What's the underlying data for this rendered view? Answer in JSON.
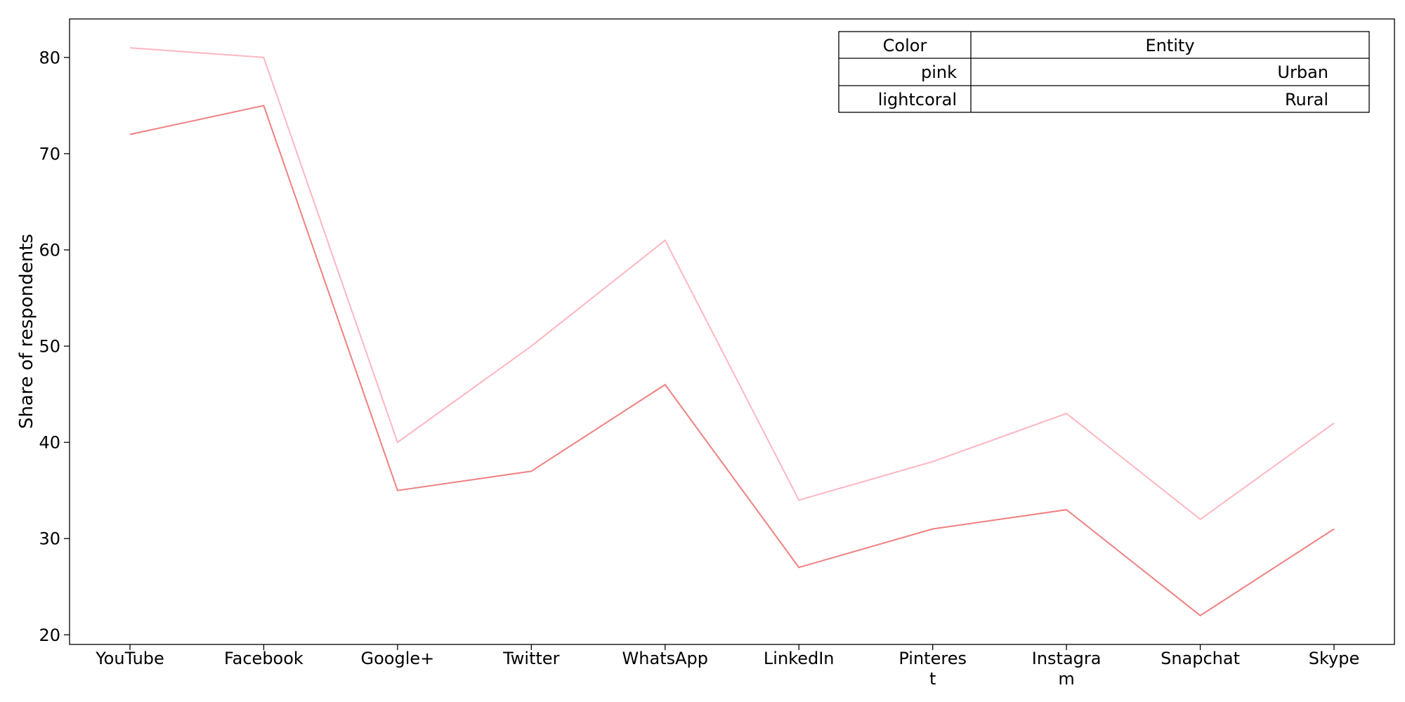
{
  "chart_data": {
    "type": "line",
    "categories": [
      "YouTube",
      "Facebook",
      "Google+",
      "Twitter",
      "WhatsApp",
      "LinkedIn",
      "Pinterest",
      "Instagram",
      "Snapchat",
      "Skype"
    ],
    "category_display": [
      [
        "YouTube"
      ],
      [
        "Facebook"
      ],
      [
        "Google+"
      ],
      [
        "Twitter"
      ],
      [
        "WhatsApp"
      ],
      [
        "LinkedIn"
      ],
      [
        "Pinteres",
        "t"
      ],
      [
        "Instagra",
        "m"
      ],
      [
        "Snapchat"
      ],
      [
        "Skype"
      ]
    ],
    "series": [
      {
        "name": "Urban",
        "color": "#ffb6c1",
        "values": [
          81,
          80,
          40,
          50,
          61,
          34,
          38,
          43,
          32,
          42
        ]
      },
      {
        "name": "Rural",
        "color": "#f08080",
        "values": [
          72,
          75,
          35,
          37,
          46,
          27,
          31,
          33,
          22,
          31
        ]
      }
    ],
    "xlabel": "",
    "ylabel": "Share of respondents",
    "ylim": [
      19,
      84
    ],
    "yticks": [
      20,
      30,
      40,
      50,
      60,
      70,
      80
    ],
    "grid": false,
    "legend_table": {
      "position": "top-right",
      "headers": [
        "Color",
        "Entity"
      ],
      "rows": [
        [
          "pink",
          "Urban"
        ],
        [
          "lightcoral",
          "Rural"
        ]
      ]
    }
  }
}
